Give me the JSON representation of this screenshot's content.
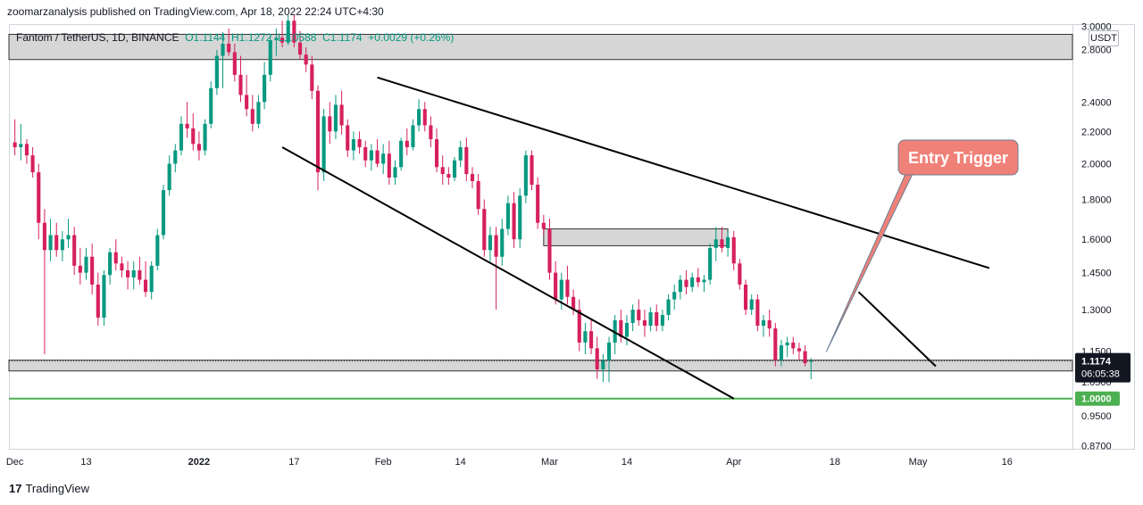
{
  "header": {
    "published": "zoomarzanalysis published on TradingView.com, Apr 18, 2022 22:24 UTC+4:30"
  },
  "legend": {
    "symbol": "Fantom / TetherUS, 1D, BINANCE",
    "open": "O1.1144",
    "high": "H1.1272",
    "low": "L1.0588",
    "close": "C1.1174",
    "change": "+0.0029 (+0.26%)"
  },
  "currency": "USDT",
  "price_label": {
    "value": "1.1174",
    "countdown": "06:05:38"
  },
  "level_label": "1.0000",
  "annotation": "Entry Trigger",
  "footer": {
    "logo": "17",
    "brand": "TradingView"
  },
  "colors": {
    "up": "#089981",
    "down": "#d6205d",
    "zone": "#cfcfcf",
    "support": "#4caf50",
    "callout": "#f08178"
  },
  "chart_data": {
    "type": "candlestick",
    "title": "Fantom / TetherUS, 1D, BINANCE",
    "y_scale": "log",
    "y_ticks": [
      "3.0000",
      "2.8000",
      "2.4000",
      "2.2000",
      "2.0000",
      "1.8000",
      "1.6000",
      "1.4500",
      "1.3000",
      "1.1500",
      "1.0500",
      "0.9500",
      "0.8700"
    ],
    "x_ticks": [
      "Dec",
      "13",
      "2022",
      "17",
      "Feb",
      "14",
      "Mar",
      "14",
      "Apr",
      "18",
      "May",
      "16"
    ],
    "x_tick_days": [
      0,
      12,
      31,
      47,
      62,
      75,
      90,
      103,
      121,
      138,
      152,
      167
    ],
    "xlim_days": [
      -1,
      178
    ],
    "ylim": [
      0.86,
      3.02
    ],
    "candles": [
      {
        "o": 2.13,
        "h": 2.28,
        "l": 2.05,
        "c": 2.1
      },
      {
        "o": 2.1,
        "h": 2.25,
        "l": 2.02,
        "c": 2.12
      },
      {
        "o": 2.12,
        "h": 2.15,
        "l": 2.0,
        "c": 2.05
      },
      {
        "o": 2.05,
        "h": 2.1,
        "l": 1.92,
        "c": 1.95
      },
      {
        "o": 1.95,
        "h": 2.0,
        "l": 1.6,
        "c": 1.68
      },
      {
        "o": 1.68,
        "h": 1.75,
        "l": 1.14,
        "c": 1.55
      },
      {
        "o": 1.55,
        "h": 1.7,
        "l": 1.5,
        "c": 1.62
      },
      {
        "o": 1.62,
        "h": 1.68,
        "l": 1.52,
        "c": 1.55
      },
      {
        "o": 1.55,
        "h": 1.64,
        "l": 1.5,
        "c": 1.6
      },
      {
        "o": 1.6,
        "h": 1.7,
        "l": 1.56,
        "c": 1.62
      },
      {
        "o": 1.62,
        "h": 1.66,
        "l": 1.44,
        "c": 1.48
      },
      {
        "o": 1.48,
        "h": 1.56,
        "l": 1.4,
        "c": 1.45
      },
      {
        "o": 1.45,
        "h": 1.56,
        "l": 1.42,
        "c": 1.52
      },
      {
        "o": 1.52,
        "h": 1.58,
        "l": 1.36,
        "c": 1.4
      },
      {
        "o": 1.4,
        "h": 1.45,
        "l": 1.24,
        "c": 1.27
      },
      {
        "o": 1.27,
        "h": 1.46,
        "l": 1.24,
        "c": 1.44
      },
      {
        "o": 1.44,
        "h": 1.56,
        "l": 1.4,
        "c": 1.54
      },
      {
        "o": 1.54,
        "h": 1.6,
        "l": 1.46,
        "c": 1.49
      },
      {
        "o": 1.49,
        "h": 1.52,
        "l": 1.43,
        "c": 1.46
      },
      {
        "o": 1.46,
        "h": 1.5,
        "l": 1.38,
        "c": 1.43
      },
      {
        "o": 1.43,
        "h": 1.5,
        "l": 1.38,
        "c": 1.46
      },
      {
        "o": 1.46,
        "h": 1.52,
        "l": 1.4,
        "c": 1.42
      },
      {
        "o": 1.42,
        "h": 1.5,
        "l": 1.35,
        "c": 1.37
      },
      {
        "o": 1.37,
        "h": 1.5,
        "l": 1.34,
        "c": 1.48
      },
      {
        "o": 1.48,
        "h": 1.65,
        "l": 1.46,
        "c": 1.62
      },
      {
        "o": 1.62,
        "h": 1.88,
        "l": 1.6,
        "c": 1.85
      },
      {
        "o": 1.85,
        "h": 2.05,
        "l": 1.82,
        "c": 2.0
      },
      {
        "o": 2.0,
        "h": 2.12,
        "l": 1.95,
        "c": 2.08
      },
      {
        "o": 2.08,
        "h": 2.3,
        "l": 2.05,
        "c": 2.25
      },
      {
        "o": 2.25,
        "h": 2.4,
        "l": 2.16,
        "c": 2.22
      },
      {
        "o": 2.22,
        "h": 2.32,
        "l": 2.08,
        "c": 2.12
      },
      {
        "o": 2.12,
        "h": 2.2,
        "l": 2.02,
        "c": 2.08
      },
      {
        "o": 2.08,
        "h": 2.28,
        "l": 2.05,
        "c": 2.25
      },
      {
        "o": 2.25,
        "h": 2.55,
        "l": 2.22,
        "c": 2.5
      },
      {
        "o": 2.5,
        "h": 2.8,
        "l": 2.45,
        "c": 2.75
      },
      {
        "o": 2.75,
        "h": 2.95,
        "l": 2.5,
        "c": 2.85
      },
      {
        "o": 2.85,
        "h": 2.98,
        "l": 2.75,
        "c": 2.78
      },
      {
        "o": 2.78,
        "h": 2.85,
        "l": 2.55,
        "c": 2.6
      },
      {
        "o": 2.6,
        "h": 2.75,
        "l": 2.4,
        "c": 2.45
      },
      {
        "o": 2.45,
        "h": 2.6,
        "l": 2.3,
        "c": 2.35
      },
      {
        "o": 2.35,
        "h": 2.45,
        "l": 2.2,
        "c": 2.25
      },
      {
        "o": 2.25,
        "h": 2.45,
        "l": 2.22,
        "c": 2.4
      },
      {
        "o": 2.4,
        "h": 2.7,
        "l": 2.35,
        "c": 2.6
      },
      {
        "o": 2.6,
        "h": 2.92,
        "l": 2.55,
        "c": 2.88
      },
      {
        "o": 2.88,
        "h": 2.98,
        "l": 2.75,
        "c": 2.9
      },
      {
        "o": 2.9,
        "h": 3.05,
        "l": 2.82,
        "c": 2.86
      },
      {
        "o": 2.86,
        "h": 3.1,
        "l": 2.84,
        "c": 3.05
      },
      {
        "o": 3.05,
        "h": 3.1,
        "l": 2.82,
        "c": 2.86
      },
      {
        "o": 2.86,
        "h": 2.96,
        "l": 2.72,
        "c": 2.76
      },
      {
        "o": 2.76,
        "h": 2.82,
        "l": 2.62,
        "c": 2.68
      },
      {
        "o": 2.68,
        "h": 2.75,
        "l": 2.42,
        "c": 2.48
      },
      {
        "o": 2.48,
        "h": 2.52,
        "l": 1.85,
        "c": 1.95
      },
      {
        "o": 1.95,
        "h": 2.35,
        "l": 1.9,
        "c": 2.3
      },
      {
        "o": 2.3,
        "h": 2.4,
        "l": 2.12,
        "c": 2.2
      },
      {
        "o": 2.2,
        "h": 2.45,
        "l": 2.15,
        "c": 2.38
      },
      {
        "o": 2.38,
        "h": 2.48,
        "l": 2.18,
        "c": 2.24
      },
      {
        "o": 2.24,
        "h": 2.28,
        "l": 2.04,
        "c": 2.08
      },
      {
        "o": 2.08,
        "h": 2.2,
        "l": 2.02,
        "c": 2.15
      },
      {
        "o": 2.15,
        "h": 2.2,
        "l": 2.06,
        "c": 2.1
      },
      {
        "o": 2.1,
        "h": 2.14,
        "l": 1.98,
        "c": 2.02
      },
      {
        "o": 2.02,
        "h": 2.12,
        "l": 1.96,
        "c": 2.08
      },
      {
        "o": 2.08,
        "h": 2.15,
        "l": 1.98,
        "c": 2.0
      },
      {
        "o": 2.0,
        "h": 2.12,
        "l": 1.94,
        "c": 2.06
      },
      {
        "o": 2.06,
        "h": 2.14,
        "l": 1.88,
        "c": 1.92
      },
      {
        "o": 1.92,
        "h": 2.02,
        "l": 1.88,
        "c": 1.98
      },
      {
        "o": 1.98,
        "h": 2.16,
        "l": 1.96,
        "c": 2.14
      },
      {
        "o": 2.14,
        "h": 2.22,
        "l": 2.05,
        "c": 2.1
      },
      {
        "o": 2.1,
        "h": 2.28,
        "l": 2.08,
        "c": 2.24
      },
      {
        "o": 2.24,
        "h": 2.42,
        "l": 2.2,
        "c": 2.35
      },
      {
        "o": 2.35,
        "h": 2.4,
        "l": 2.2,
        "c": 2.24
      },
      {
        "o": 2.24,
        "h": 2.3,
        "l": 2.1,
        "c": 2.15
      },
      {
        "o": 2.15,
        "h": 2.22,
        "l": 1.95,
        "c": 1.98
      },
      {
        "o": 1.98,
        "h": 2.05,
        "l": 1.88,
        "c": 1.94
      },
      {
        "o": 1.94,
        "h": 1.98,
        "l": 1.88,
        "c": 1.92
      },
      {
        "o": 1.92,
        "h": 2.04,
        "l": 1.9,
        "c": 2.02
      },
      {
        "o": 2.02,
        "h": 2.14,
        "l": 1.98,
        "c": 2.1
      },
      {
        "o": 2.1,
        "h": 2.16,
        "l": 1.9,
        "c": 1.94
      },
      {
        "o": 1.94,
        "h": 1.98,
        "l": 1.86,
        "c": 1.9
      },
      {
        "o": 1.9,
        "h": 1.94,
        "l": 1.72,
        "c": 1.75
      },
      {
        "o": 1.75,
        "h": 1.8,
        "l": 1.52,
        "c": 1.55
      },
      {
        "o": 1.55,
        "h": 1.66,
        "l": 1.5,
        "c": 1.62
      },
      {
        "o": 1.62,
        "h": 1.66,
        "l": 1.3,
        "c": 1.52
      },
      {
        "o": 1.52,
        "h": 1.7,
        "l": 1.48,
        "c": 1.65
      },
      {
        "o": 1.65,
        "h": 1.82,
        "l": 1.62,
        "c": 1.78
      },
      {
        "o": 1.78,
        "h": 1.84,
        "l": 1.56,
        "c": 1.6
      },
      {
        "o": 1.6,
        "h": 1.86,
        "l": 1.56,
        "c": 1.82
      },
      {
        "o": 1.82,
        "h": 2.08,
        "l": 1.78,
        "c": 2.05
      },
      {
        "o": 2.05,
        "h": 2.08,
        "l": 1.85,
        "c": 1.88
      },
      {
        "o": 1.88,
        "h": 1.92,
        "l": 1.65,
        "c": 1.68
      },
      {
        "o": 1.68,
        "h": 1.72,
        "l": 1.62,
        "c": 1.65
      },
      {
        "o": 1.65,
        "h": 1.7,
        "l": 1.42,
        "c": 1.45
      },
      {
        "o": 1.45,
        "h": 1.5,
        "l": 1.32,
        "c": 1.34
      },
      {
        "o": 1.34,
        "h": 1.45,
        "l": 1.3,
        "c": 1.42
      },
      {
        "o": 1.42,
        "h": 1.48,
        "l": 1.32,
        "c": 1.35
      },
      {
        "o": 1.35,
        "h": 1.38,
        "l": 1.28,
        "c": 1.3
      },
      {
        "o": 1.3,
        "h": 1.34,
        "l": 1.15,
        "c": 1.18
      },
      {
        "o": 1.18,
        "h": 1.25,
        "l": 1.14,
        "c": 1.22
      },
      {
        "o": 1.22,
        "h": 1.26,
        "l": 1.14,
        "c": 1.16
      },
      {
        "o": 1.16,
        "h": 1.2,
        "l": 1.06,
        "c": 1.09
      },
      {
        "o": 1.09,
        "h": 1.14,
        "l": 1.05,
        "c": 1.12
      },
      {
        "o": 1.12,
        "h": 1.2,
        "l": 1.05,
        "c": 1.18
      },
      {
        "o": 1.18,
        "h": 1.28,
        "l": 1.14,
        "c": 1.26
      },
      {
        "o": 1.26,
        "h": 1.3,
        "l": 1.18,
        "c": 1.2
      },
      {
        "o": 1.2,
        "h": 1.28,
        "l": 1.17,
        "c": 1.25
      },
      {
        "o": 1.25,
        "h": 1.32,
        "l": 1.22,
        "c": 1.3
      },
      {
        "o": 1.3,
        "h": 1.34,
        "l": 1.24,
        "c": 1.26
      },
      {
        "o": 1.26,
        "h": 1.3,
        "l": 1.2,
        "c": 1.24
      },
      {
        "o": 1.24,
        "h": 1.31,
        "l": 1.22,
        "c": 1.29
      },
      {
        "o": 1.29,
        "h": 1.32,
        "l": 1.22,
        "c": 1.24
      },
      {
        "o": 1.24,
        "h": 1.3,
        "l": 1.22,
        "c": 1.28
      },
      {
        "o": 1.28,
        "h": 1.36,
        "l": 1.26,
        "c": 1.34
      },
      {
        "o": 1.34,
        "h": 1.4,
        "l": 1.3,
        "c": 1.37
      },
      {
        "o": 1.37,
        "h": 1.44,
        "l": 1.34,
        "c": 1.42
      },
      {
        "o": 1.42,
        "h": 1.46,
        "l": 1.36,
        "c": 1.39
      },
      {
        "o": 1.39,
        "h": 1.45,
        "l": 1.37,
        "c": 1.43
      },
      {
        "o": 1.43,
        "h": 1.47,
        "l": 1.39,
        "c": 1.41
      },
      {
        "o": 1.41,
        "h": 1.44,
        "l": 1.37,
        "c": 1.42
      },
      {
        "o": 1.42,
        "h": 1.58,
        "l": 1.4,
        "c": 1.56
      },
      {
        "o": 1.56,
        "h": 1.66,
        "l": 1.5,
        "c": 1.6
      },
      {
        "o": 1.6,
        "h": 1.66,
        "l": 1.54,
        "c": 1.56
      },
      {
        "o": 1.56,
        "h": 1.64,
        "l": 1.52,
        "c": 1.61
      },
      {
        "o": 1.61,
        "h": 1.64,
        "l": 1.46,
        "c": 1.49
      },
      {
        "o": 1.49,
        "h": 1.51,
        "l": 1.38,
        "c": 1.4
      },
      {
        "o": 1.4,
        "h": 1.42,
        "l": 1.28,
        "c": 1.3
      },
      {
        "o": 1.3,
        "h": 1.36,
        "l": 1.28,
        "c": 1.34
      },
      {
        "o": 1.34,
        "h": 1.36,
        "l": 1.22,
        "c": 1.24
      },
      {
        "o": 1.24,
        "h": 1.28,
        "l": 1.2,
        "c": 1.26
      },
      {
        "o": 1.26,
        "h": 1.3,
        "l": 1.2,
        "c": 1.23
      },
      {
        "o": 1.23,
        "h": 1.25,
        "l": 1.1,
        "c": 1.12
      },
      {
        "o": 1.12,
        "h": 1.19,
        "l": 1.1,
        "c": 1.17
      },
      {
        "o": 1.17,
        "h": 1.2,
        "l": 1.13,
        "c": 1.18
      },
      {
        "o": 1.18,
        "h": 1.2,
        "l": 1.14,
        "c": 1.16
      },
      {
        "o": 1.16,
        "h": 1.18,
        "l": 1.12,
        "c": 1.15
      },
      {
        "o": 1.15,
        "h": 1.17,
        "l": 1.1,
        "c": 1.11
      },
      {
        "o": 1.1144,
        "h": 1.1272,
        "l": 1.0588,
        "c": 1.1174
      }
    ],
    "zones": [
      {
        "name": "resistance-zone",
        "from_day": -1,
        "to_day": 178,
        "low": 2.72,
        "high": 2.93
      },
      {
        "name": "mid-zone",
        "from_day": 89,
        "to_day": 120,
        "low": 1.57,
        "high": 1.65
      },
      {
        "name": "support-zone",
        "from_day": -1,
        "to_day": 178,
        "low": 1.085,
        "high": 1.12
      }
    ],
    "trendlines": [
      {
        "name": "upper-channel-line",
        "from": [
          61,
          2.58
        ],
        "to": [
          164,
          1.47
        ]
      },
      {
        "name": "lower-channel-line",
        "from": [
          45,
          2.1
        ],
        "to": [
          121,
          1.0
        ]
      },
      {
        "name": "short-downtrend-line",
        "from": [
          142,
          1.37
        ],
        "to": [
          155,
          1.1
        ]
      }
    ],
    "support_level": 1.0,
    "current_price": 1.1174
  }
}
